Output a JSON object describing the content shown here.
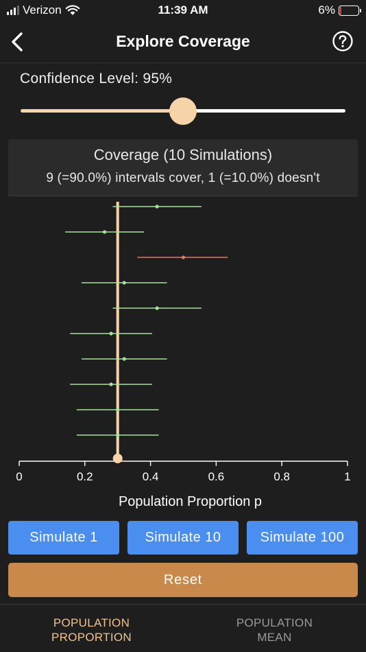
{
  "status_bar": {
    "carrier": "Verizon",
    "time": "11:39 AM",
    "battery": "6%",
    "battery_level": 0.06
  },
  "header": {
    "back_icon": "chevron-left-icon",
    "title": "Explore Coverage",
    "help_icon": "question-circle-icon"
  },
  "confidence": {
    "label": "Confidence Level: 95%",
    "slider_value": 0.5
  },
  "coverage": {
    "title": "Coverage (10 Simulations)",
    "summary": "9 (=90.0%) intervals cover, 1 (=10.0%) doesn't"
  },
  "chart_data": {
    "type": "scatter",
    "title": "",
    "xlabel": "Population Proportion p",
    "xlim": [
      0,
      1
    ],
    "x_ticks": [
      "0",
      "0.2",
      "0.4",
      "0.6",
      "0.8",
      "1"
    ],
    "true_p": 0.3,
    "intervals": [
      {
        "estimate": 0.42,
        "lower": 0.285,
        "upper": 0.555,
        "covers": true
      },
      {
        "estimate": 0.26,
        "lower": 0.14,
        "upper": 0.38,
        "covers": true
      },
      {
        "estimate": 0.5,
        "lower": 0.36,
        "upper": 0.635,
        "covers": false
      },
      {
        "estimate": 0.32,
        "lower": 0.19,
        "upper": 0.45,
        "covers": true
      },
      {
        "estimate": 0.42,
        "lower": 0.285,
        "upper": 0.555,
        "covers": true
      },
      {
        "estimate": 0.28,
        "lower": 0.155,
        "upper": 0.405,
        "covers": true
      },
      {
        "estimate": 0.32,
        "lower": 0.19,
        "upper": 0.45,
        "covers": true
      },
      {
        "estimate": 0.28,
        "lower": 0.155,
        "upper": 0.405,
        "covers": true
      },
      {
        "estimate": 0.3,
        "lower": 0.175,
        "upper": 0.425,
        "covers": true
      },
      {
        "estimate": 0.3,
        "lower": 0.175,
        "upper": 0.425,
        "covers": true
      }
    ],
    "colors": {
      "cover": "#a6e39a",
      "miss": "#e07a63",
      "true_line": "#f7d4a8",
      "axis": "#ffffff"
    }
  },
  "buttons": {
    "simulate_1": "Simulate 1",
    "simulate_10": "Simulate 10",
    "simulate_100": "Simulate 100",
    "reset": "Reset"
  },
  "tabs": [
    {
      "line1": "POPULATION",
      "line2": "PROPORTION",
      "active": true
    },
    {
      "line1": "POPULATION",
      "line2": "MEAN",
      "active": false
    }
  ],
  "colors": {
    "accent": "#f7d4a8",
    "button_blue": "#4a8ef0",
    "button_reset": "#c8894a",
    "background": "#1e1e1e"
  }
}
